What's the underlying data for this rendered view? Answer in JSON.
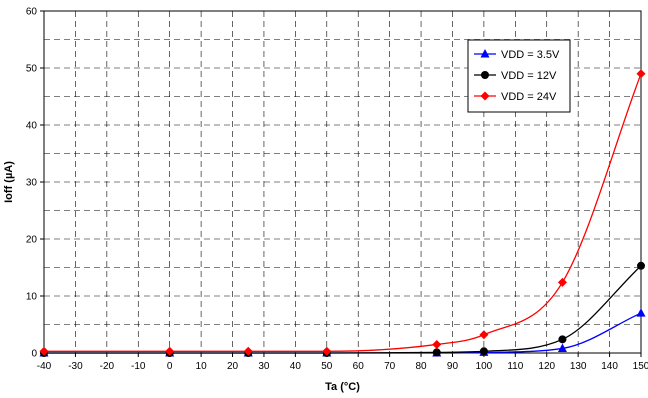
{
  "chart_data": {
    "type": "line",
    "title": "",
    "xlabel": "Ta (°C)",
    "ylabel": "Ioff (µA)",
    "xlim": [
      -40,
      150
    ],
    "ylim": [
      0,
      60
    ],
    "xticks": [
      -40,
      -30,
      -20,
      -10,
      0,
      10,
      20,
      30,
      40,
      50,
      60,
      70,
      80,
      90,
      100,
      110,
      120,
      130,
      140,
      150
    ],
    "yticks": [
      0,
      10,
      20,
      30,
      40,
      50,
      60
    ],
    "grid": true,
    "legend_position": "top-right",
    "series": [
      {
        "name": "VDD = 3.5V",
        "color": "#0000ff",
        "marker": "triangle",
        "x": [
          -40,
          0,
          25,
          50,
          85,
          100,
          125,
          150
        ],
        "y": [
          0.0,
          0.0,
          0.0,
          0.0,
          0.0,
          0.1,
          0.8,
          7.0
        ]
      },
      {
        "name": "VDD = 12V",
        "color": "#000000",
        "marker": "circle",
        "x": [
          -40,
          0,
          25,
          50,
          85,
          100,
          125,
          150
        ],
        "y": [
          0.0,
          0.0,
          0.0,
          0.0,
          0.1,
          0.3,
          2.4,
          15.3
        ]
      },
      {
        "name": "VDD = 24V",
        "color": "#ff0000",
        "marker": "diamond",
        "x": [
          -40,
          0,
          25,
          50,
          85,
          100,
          125,
          150
        ],
        "y": [
          0.3,
          0.3,
          0.3,
          0.3,
          1.5,
          3.2,
          12.4,
          49.0
        ]
      }
    ]
  }
}
